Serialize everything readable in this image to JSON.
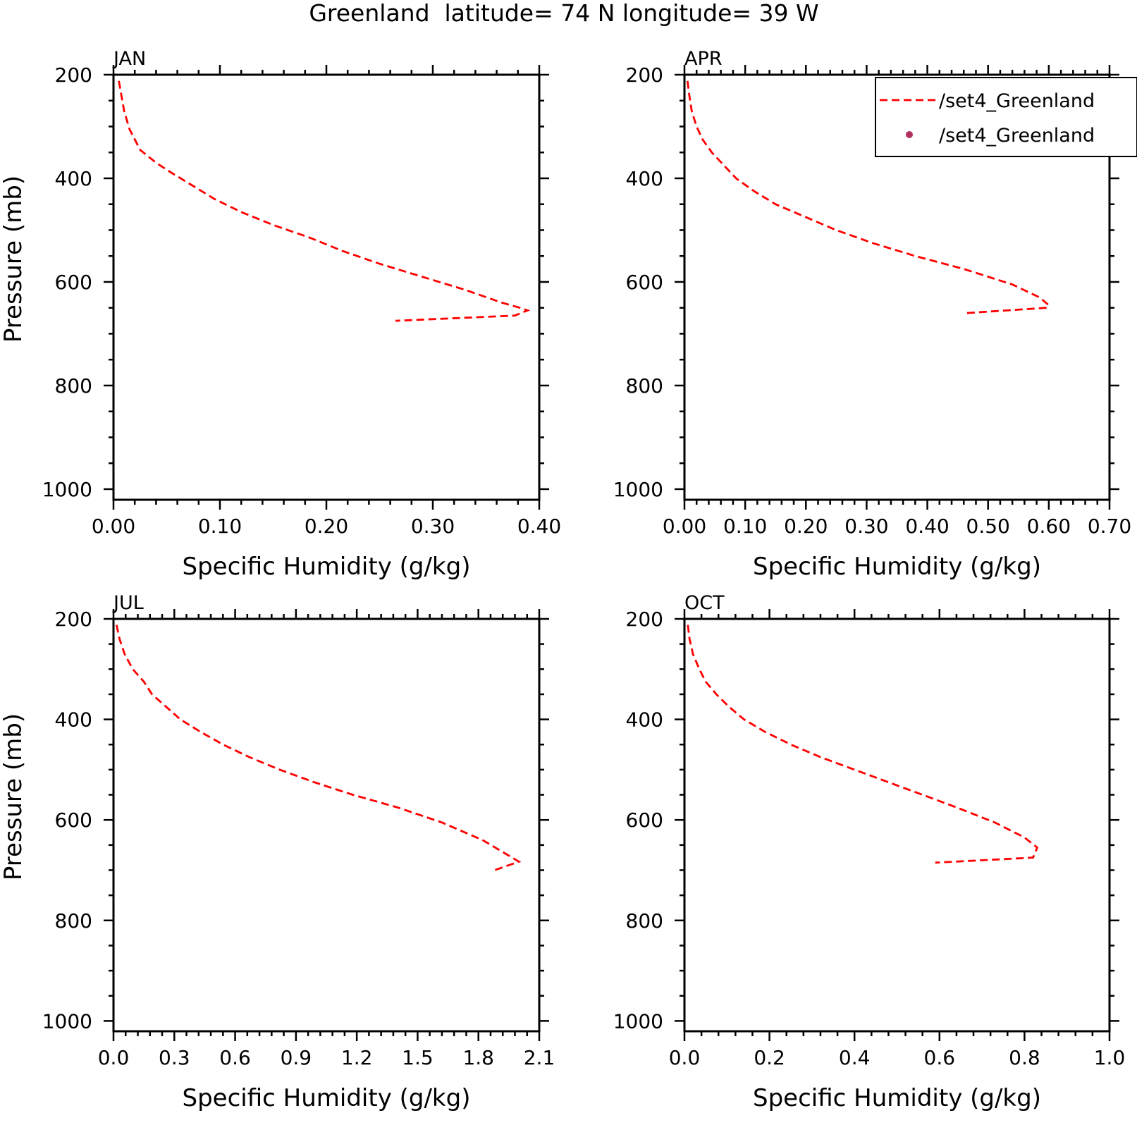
{
  "figure": {
    "title": "Greenland  latitude= 74 N longitude= 39 W"
  },
  "legend": {
    "entries": [
      {
        "label": "/set4_Greenland",
        "symbol": "dashed-line",
        "color": "#ff0000"
      },
      {
        "label": "/set4_Greenland",
        "symbol": "dot",
        "color": "#b03060"
      }
    ]
  },
  "chart_data": [
    {
      "type": "line",
      "title": "JAN",
      "xlabel": "Specific Humidity (g/kg)",
      "ylabel": "Pressure (mb)",
      "xlim": [
        0,
        0.4
      ],
      "ylim": [
        200,
        1000
      ],
      "y_inverted": true,
      "xticks": [
        "0.00",
        "0.10",
        "0.20",
        "0.30",
        "0.40"
      ],
      "yticks": [
        "200",
        "400",
        "600",
        "800",
        "1000"
      ],
      "series": [
        {
          "color": "#ff0000",
          "style": "dashed",
          "x": [
            0.005,
            0.007,
            0.01,
            0.015,
            0.025,
            0.04,
            0.055,
            0.075,
            0.095,
            0.12,
            0.15,
            0.185,
            0.215,
            0.25,
            0.29,
            0.33,
            0.365,
            0.382,
            0.389,
            0.377,
            0.265
          ],
          "y": [
            212,
            235,
            270,
            305,
            345,
            370,
            390,
            415,
            440,
            465,
            490,
            515,
            540,
            565,
            590,
            615,
            640,
            650,
            655,
            665,
            675
          ]
        }
      ]
    },
    {
      "type": "line",
      "title": "APR",
      "xlabel": "Specific Humidity (g/kg)",
      "ylabel": "Pressure (mb)",
      "xlim": [
        0,
        0.7
      ],
      "ylim": [
        200,
        1000
      ],
      "y_inverted": true,
      "xticks": [
        "0.00",
        "0.10",
        "0.20",
        "0.30",
        "0.40",
        "0.50",
        "0.60",
        "0.70"
      ],
      "yticks": [
        "200",
        "400",
        "600",
        "800",
        "1000"
      ],
      "series": [
        {
          "color": "#ff0000",
          "style": "dashed",
          "x": [
            0.005,
            0.008,
            0.012,
            0.02,
            0.03,
            0.045,
            0.065,
            0.085,
            0.115,
            0.15,
            0.2,
            0.25,
            0.31,
            0.38,
            0.46,
            0.54,
            0.585,
            0.6,
            0.595,
            0.465
          ],
          "y": [
            212,
            240,
            270,
            300,
            325,
            350,
            375,
            400,
            425,
            450,
            475,
            500,
            525,
            550,
            575,
            605,
            630,
            645,
            650,
            660
          ]
        }
      ]
    },
    {
      "type": "line",
      "title": "JUL",
      "xlabel": "Specific Humidity (g/kg)",
      "ylabel": "Pressure (mb)",
      "xlim": [
        0,
        2.1
      ],
      "ylim": [
        200,
        1000
      ],
      "y_inverted": true,
      "xticks": [
        "0.0",
        "0.3",
        "0.6",
        "0.9",
        "1.2",
        "1.5",
        "1.8",
        "2.1"
      ],
      "yticks": [
        "200",
        "400",
        "600",
        "800",
        "1000"
      ],
      "series": [
        {
          "color": "#ff0000",
          "style": "dashed",
          "x": [
            0.015,
            0.03,
            0.055,
            0.095,
            0.15,
            0.19,
            0.26,
            0.33,
            0.43,
            0.54,
            0.67,
            0.82,
            0.99,
            1.18,
            1.4,
            1.62,
            1.82,
            2.0,
            1.88
          ],
          "y": [
            212,
            240,
            270,
            300,
            325,
            350,
            375,
            400,
            425,
            450,
            475,
            500,
            525,
            550,
            575,
            605,
            640,
            683,
            700
          ]
        }
      ]
    },
    {
      "type": "line",
      "title": "OCT",
      "xlabel": "Specific Humidity (g/kg)",
      "ylabel": "Pressure (mb)",
      "xlim": [
        0,
        1.0
      ],
      "ylim": [
        200,
        1000
      ],
      "y_inverted": true,
      "xticks": [
        "0.0",
        "0.2",
        "0.4",
        "0.6",
        "0.8",
        "1.0"
      ],
      "yticks": [
        "200",
        "400",
        "600",
        "800",
        "1000"
      ],
      "series": [
        {
          "color": "#ff0000",
          "style": "dashed",
          "x": [
            0.008,
            0.012,
            0.02,
            0.035,
            0.05,
            0.075,
            0.105,
            0.14,
            0.19,
            0.25,
            0.32,
            0.4,
            0.48,
            0.56,
            0.64,
            0.73,
            0.8,
            0.83,
            0.82,
            0.59
          ],
          "y": [
            212,
            240,
            270,
            300,
            325,
            350,
            375,
            400,
            425,
            450,
            475,
            500,
            525,
            550,
            575,
            605,
            635,
            655,
            675,
            685
          ]
        }
      ]
    }
  ]
}
